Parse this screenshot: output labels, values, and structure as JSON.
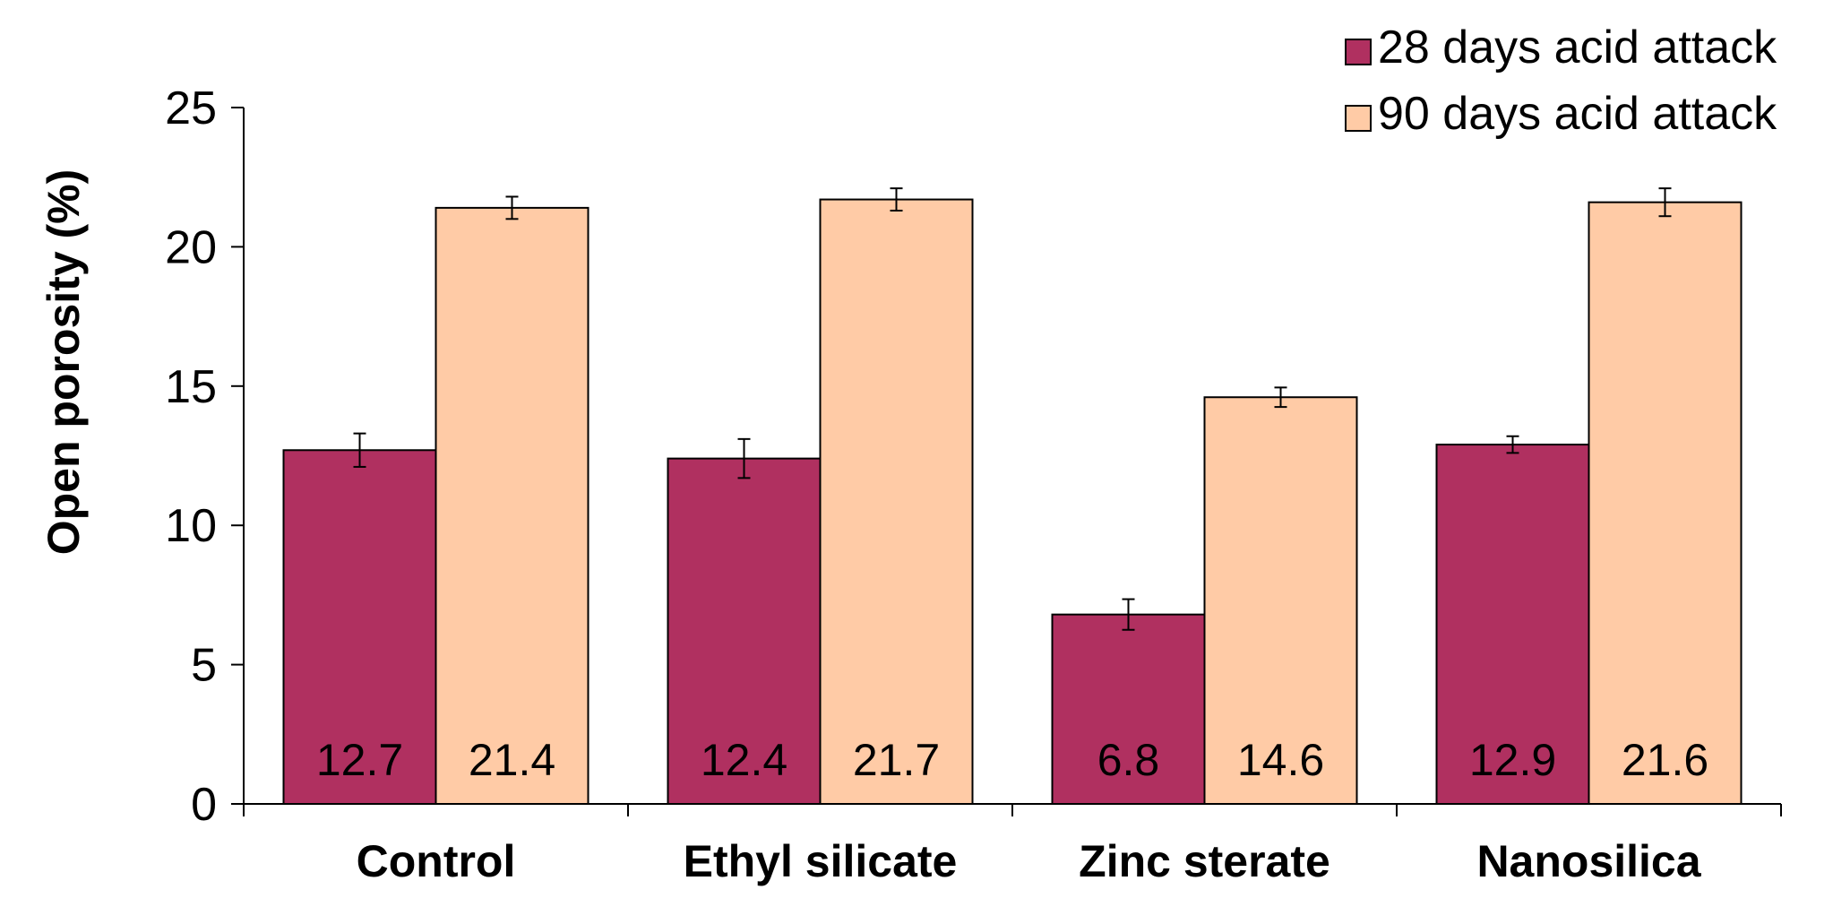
{
  "chart_data": {
    "type": "bar",
    "title": "",
    "xlabel": "",
    "ylabel": "Open porosity (%)",
    "ylim": [
      0,
      25
    ],
    "yticks": [
      0,
      5,
      10,
      15,
      20,
      25
    ],
    "yticks_labels": [
      "0",
      "5",
      "10",
      "15",
      "20",
      "25"
    ],
    "grid": false,
    "legend_position": "top-right",
    "categories": [
      "Control",
      "Ethyl silicate",
      "Zinc sterate",
      "Nanosilica"
    ],
    "series": [
      {
        "name": "28 days acid attack",
        "color": "#B03060",
        "values": [
          12.7,
          12.4,
          6.8,
          12.9
        ],
        "value_labels": [
          "12.7",
          "12.4",
          "6.8",
          "12.9"
        ],
        "errors": [
          0.6,
          0.7,
          0.55,
          0.3
        ]
      },
      {
        "name": "90 days acid attack",
        "color": "#FFCBA6",
        "values": [
          21.4,
          21.7,
          14.6,
          21.6
        ],
        "value_labels": [
          "21.4",
          "21.7",
          "14.6",
          "21.6"
        ],
        "errors": [
          0.4,
          0.4,
          0.35,
          0.5
        ]
      }
    ]
  }
}
